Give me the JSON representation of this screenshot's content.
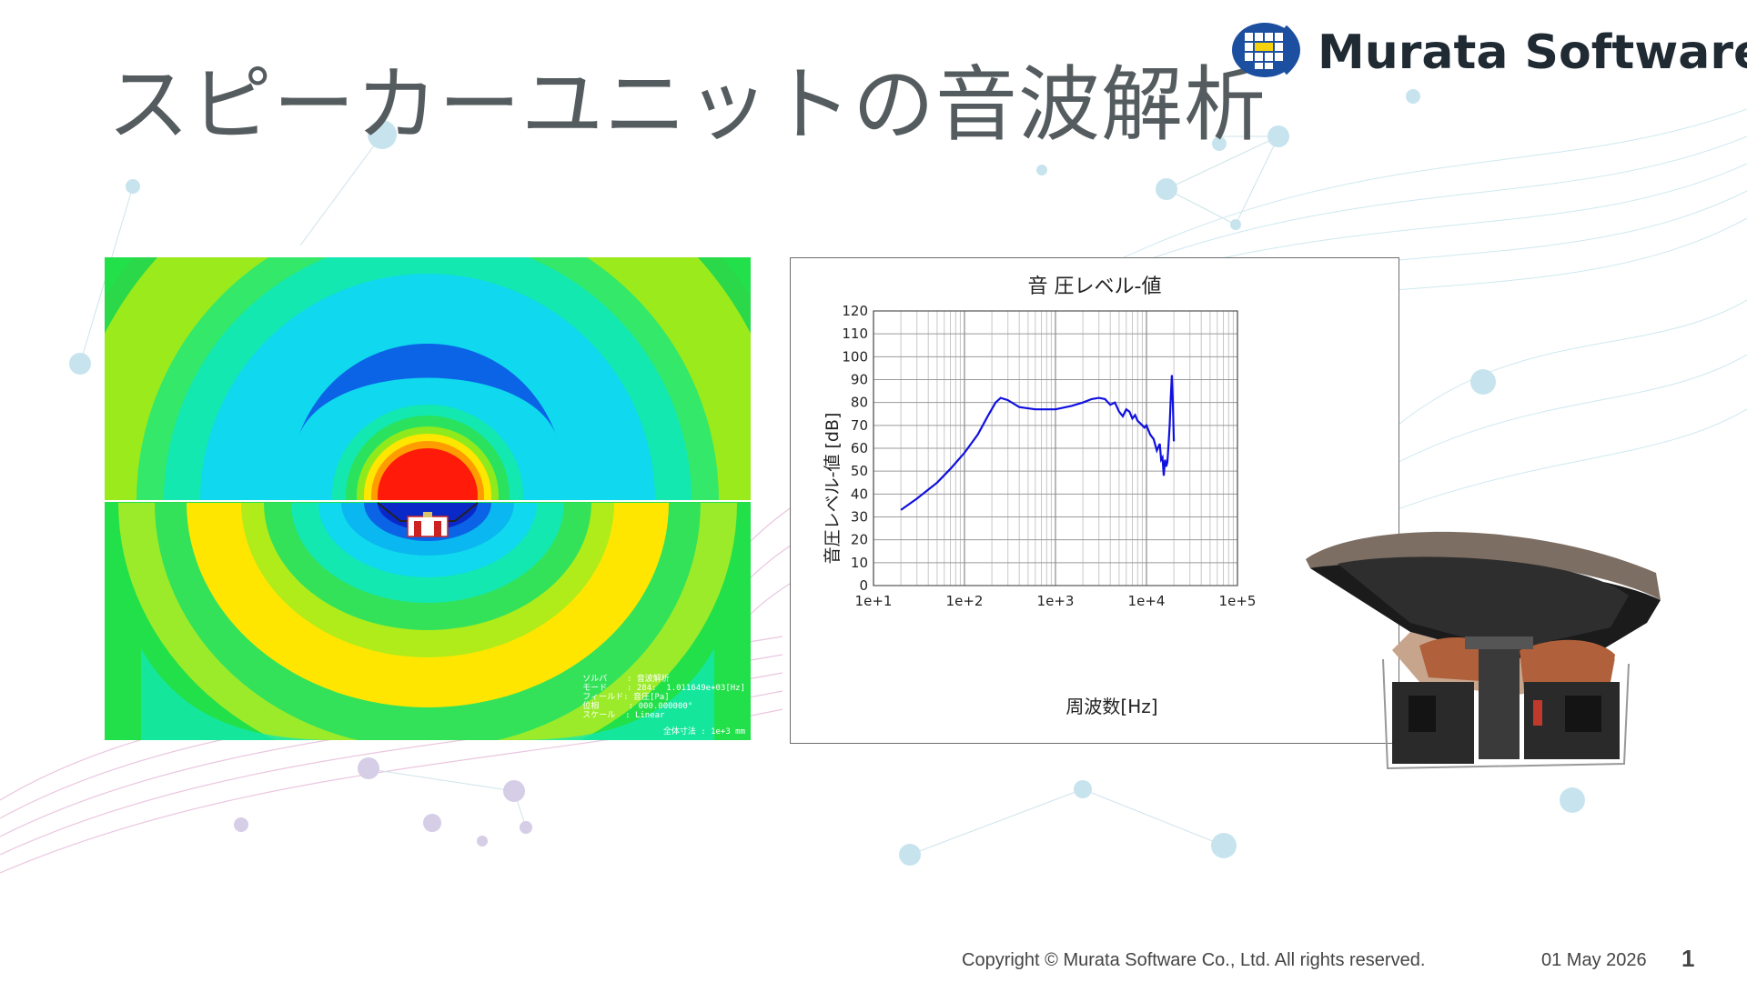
{
  "slide": {
    "title": "スピーカーユニットの音波解析",
    "logo_text": "Murata Software",
    "copyright": "Copyright © Murata Software Co., Ltd. All rights reserved.",
    "date": "01 May 2026",
    "page_number": "1"
  },
  "simulation": {
    "info_lines": [
      "ソルバ    : 音波解析",
      "モード    : 284:  1.011649e+03[Hz]",
      "フィールド: 音圧[Pa]",
      "位相      : 000.000000°",
      "スケール  : Linear"
    ],
    "size_note": "全体寸法 : 1e+3 mm"
  },
  "chart_data": {
    "type": "line",
    "title": "音 圧レベル-値",
    "xlabel": "周波数[Hz]",
    "ylabel": "音圧レベル-値 [dB]",
    "x_scale": "log",
    "xlim": [
      10,
      100000
    ],
    "ylim": [
      0,
      120
    ],
    "x_tick_labels": [
      "1e+1",
      "1e+2",
      "1e+3",
      "1e+4",
      "1e+5"
    ],
    "y_ticks": [
      0,
      10,
      20,
      30,
      40,
      50,
      60,
      70,
      80,
      90,
      100,
      110,
      120
    ],
    "grid": true,
    "series_color": "#1010e0",
    "series": [
      {
        "x": [
          20,
          30,
          50,
          70,
          100,
          140,
          180,
          220,
          250,
          300,
          400,
          600,
          1000,
          1500,
          2000,
          2500,
          3000,
          3500,
          4000,
          4500,
          5000,
          5500,
          6000,
          6500,
          7000,
          7500,
          8000,
          8500,
          9000,
          9500,
          10000,
          11000,
          12000,
          13000,
          14000,
          14500,
          15000,
          15500,
          16000,
          16500,
          17000,
          17500,
          18000,
          18500,
          19000,
          19500,
          20000
        ],
        "y": [
          33,
          38,
          45,
          51,
          58,
          66,
          74,
          80,
          82,
          81,
          78,
          77,
          77,
          78.5,
          80,
          81.5,
          82,
          81.5,
          79,
          80,
          76,
          74,
          77,
          76,
          73,
          74.5,
          72,
          71,
          70,
          69,
          70,
          66,
          64,
          59,
          62,
          55,
          56,
          48,
          55,
          52,
          54,
          62,
          70,
          82,
          92,
          80,
          63
        ]
      }
    ]
  },
  "colors": {
    "title": "#555c5f",
    "logo_blue": "#1c4fa0",
    "logo_yellow": "#f5d20a"
  }
}
